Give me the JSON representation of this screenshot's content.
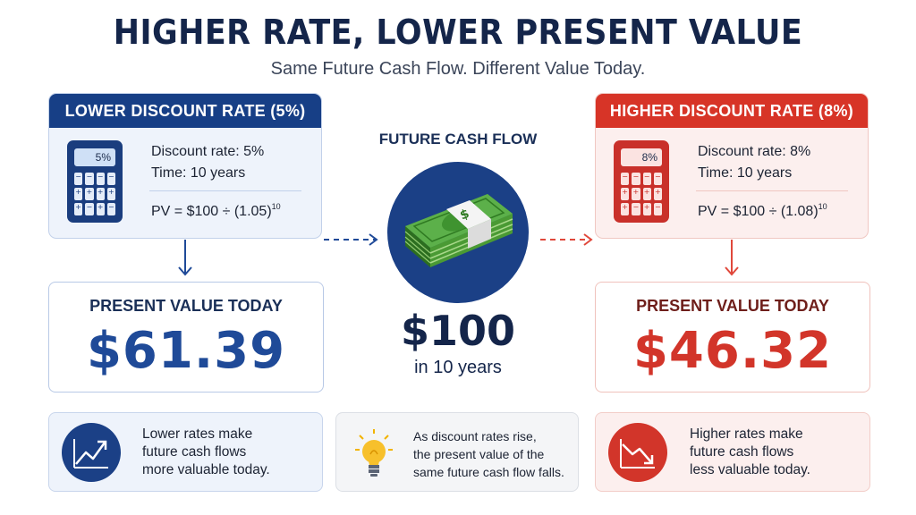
{
  "header": {
    "title": "HIGHER RATE, LOWER PRESENT VALUE",
    "subtitle": "Same Future Cash Flow. Different Value Today."
  },
  "left": {
    "card_title": "LOWER DISCOUNT RATE (5%)",
    "calculator_display": "5%",
    "rate_line": "Discount rate: 5%",
    "time_line": "Time: 10 years",
    "formula": "PV = $100 ÷ (1.05)",
    "formula_exponent": "10",
    "pv_label": "PRESENT VALUE TODAY",
    "pv_value": "$61.39",
    "note_lines": [
      "Lower rates make",
      "future cash flows",
      "more valuable today."
    ],
    "icon": "trend-up-icon",
    "accent": "#173f86"
  },
  "center": {
    "label": "FUTURE CASH FLOW",
    "amount": "$100",
    "horizon": "in 10 years",
    "money_symbol": "$",
    "note_lines": [
      "As discount rates rise,",
      "the present value of the",
      "same future cash flow falls."
    ],
    "icon": "lightbulb-icon"
  },
  "right": {
    "card_title": "HIGHER DISCOUNT RATE (8%)",
    "calculator_display": "8%",
    "rate_line": "Discount rate: 8%",
    "time_line": "Time: 10 years",
    "formula": "PV = $100 ÷ (1.08)",
    "formula_exponent": "10",
    "pv_label": "PRESENT VALUE TODAY",
    "pv_value": "$46.32",
    "note_lines": [
      "Higher rates make",
      "future cash flows",
      "less valuable today."
    ],
    "icon": "trend-down-icon",
    "accent": "#d73427"
  },
  "calculator_keys": [
    "−",
    "−",
    "−",
    "−",
    "+",
    "+",
    "+",
    "+",
    "+",
    "−",
    "+",
    "−"
  ]
}
